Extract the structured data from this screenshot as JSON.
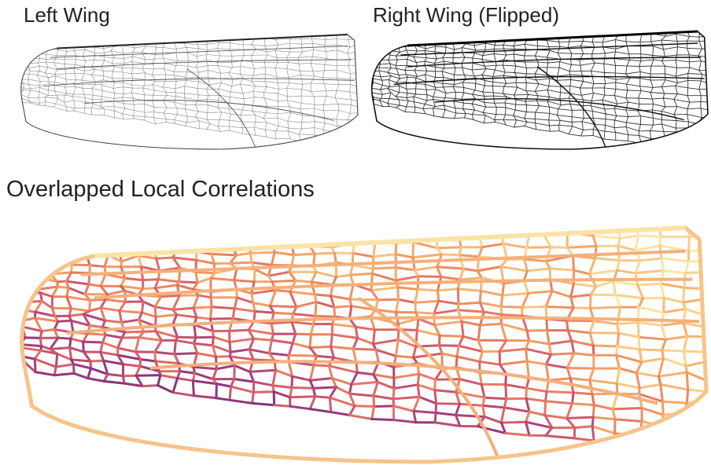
{
  "panels": [
    {
      "title": "Left Wing"
    },
    {
      "title": "Right Wing (Flipped)"
    },
    {
      "title": "Overlapped Local Correlations"
    }
  ]
}
